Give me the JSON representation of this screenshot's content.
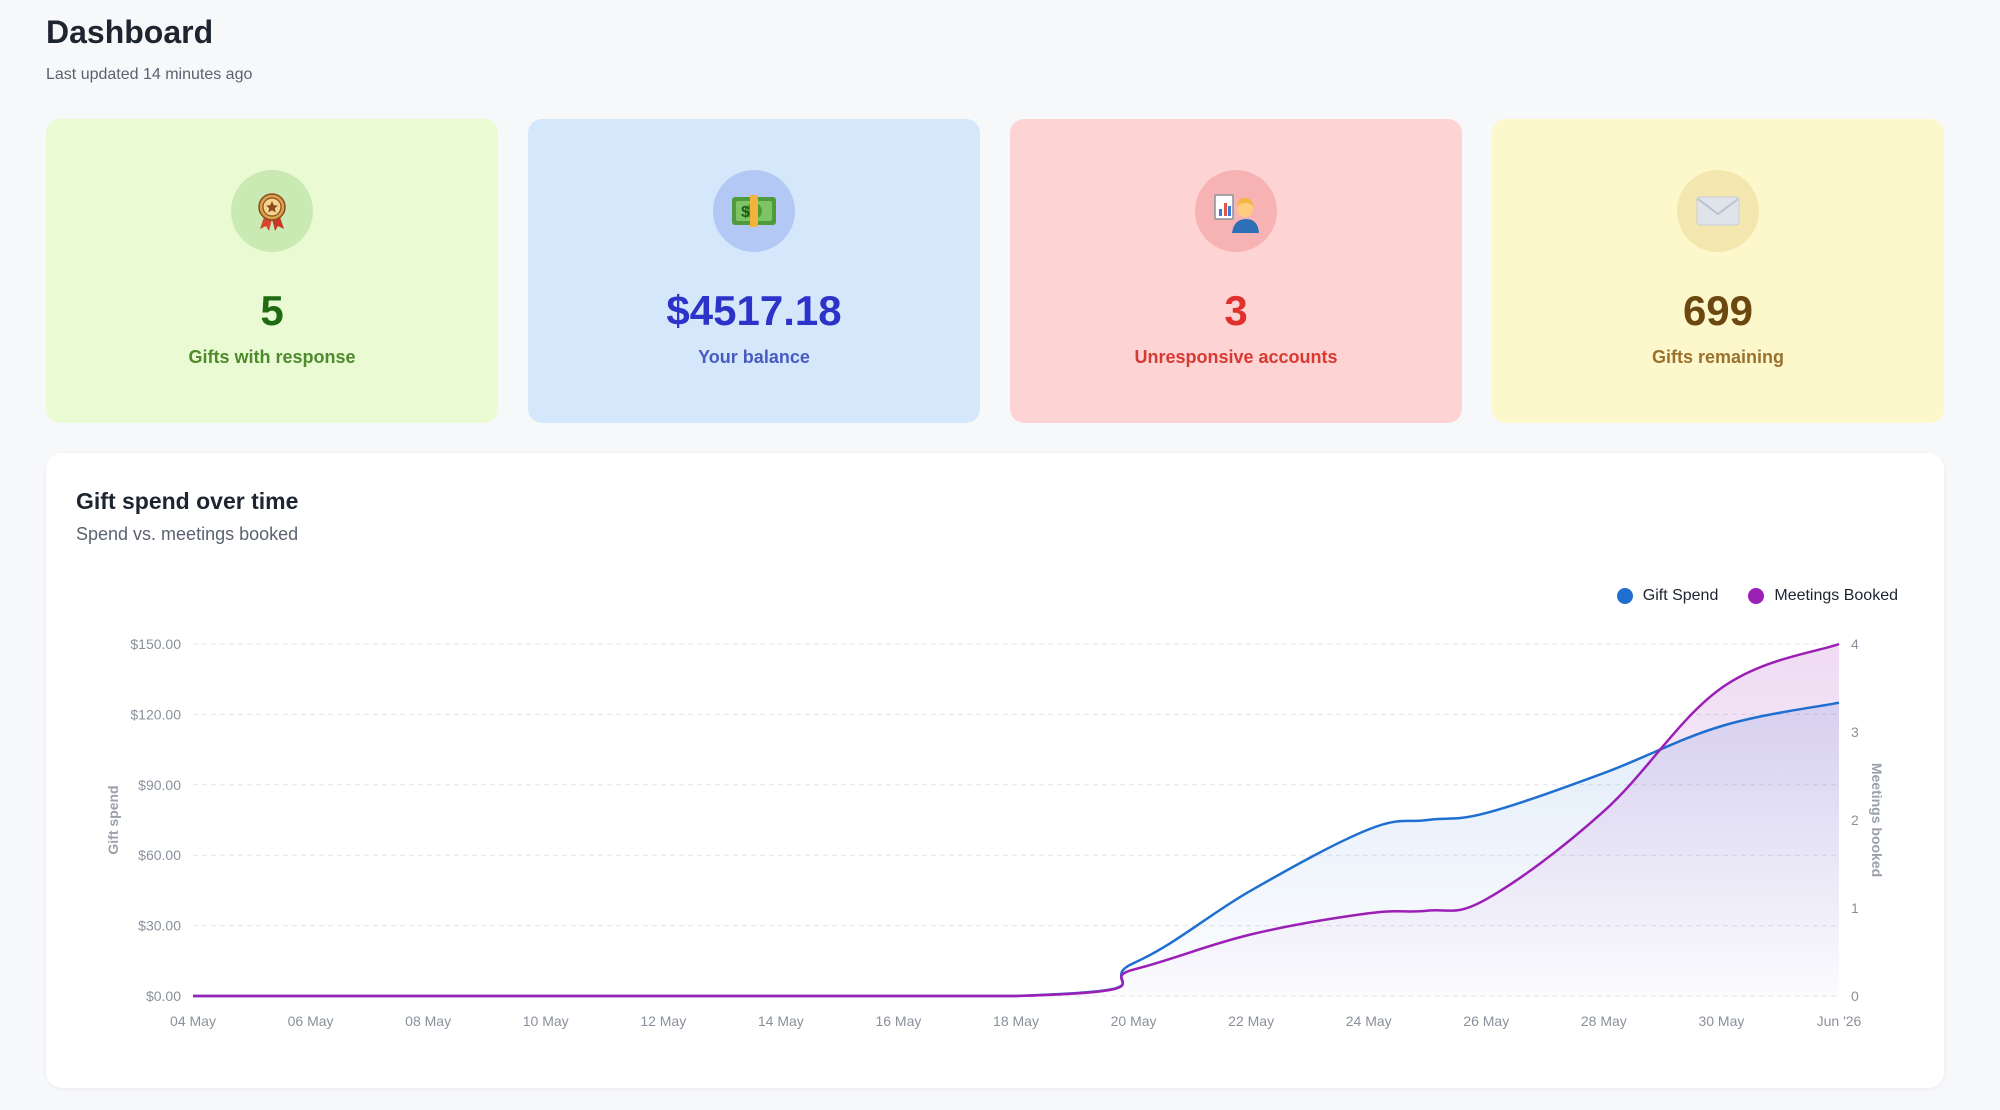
{
  "header": {
    "title": "Dashboard",
    "subtitle": "Last updated 14 minutes ago"
  },
  "cards": [
    {
      "value": "5",
      "label": "Gifts with response",
      "icon": "rosette-award-icon",
      "bg": "#eafbd4",
      "circle": "#c9eab3",
      "value_color": "#1f6b12",
      "label_color": "#4f8a2e"
    },
    {
      "value": "$4517.18",
      "label": "Your balance",
      "icon": "money-bill-icon",
      "bg": "#d5e7fb",
      "circle": "#b3c8f5",
      "value_color": "#2d32c9",
      "label_color": "#4a5bc0"
    },
    {
      "value": "3",
      "label": "Unresponsive accounts",
      "icon": "person-presenting-icon",
      "bg": "#fdd3d3",
      "circle": "#f7b3b3",
      "value_color": "#e0312f",
      "label_color": "#d63a33"
    },
    {
      "value": "699",
      "label": "Gifts remaining",
      "icon": "envelope-icon",
      "bg": "#fdf7cc",
      "circle": "#f3e6ae",
      "value_color": "#6b4810",
      "label_color": "#9a7230"
    }
  ],
  "chart": {
    "title": "Gift spend over time",
    "subtitle": "Spend vs. meetings booked",
    "legend": [
      {
        "name": "Gift Spend",
        "color": "#1f6fd1"
      },
      {
        "name": "Meetings Booked",
        "color": "#9b1fb5"
      }
    ]
  },
  "chart_data": {
    "type": "area",
    "x": [
      "04 May",
      "06 May",
      "08 May",
      "10 May",
      "12 May",
      "14 May",
      "16 May",
      "18 May",
      "20 May",
      "22 May",
      "24 May",
      "26 May",
      "28 May",
      "30 May",
      "Jun '26"
    ],
    "y_left": {
      "label": "Gift spend",
      "ticks": [
        "$0.00",
        "$30.00",
        "$60.00",
        "$90.00",
        "$120.00",
        "$150.00"
      ],
      "ylim": [
        0,
        150
      ]
    },
    "y_right": {
      "label": "Meetings booked",
      "ticks": [
        "0",
        "1",
        "2",
        "3",
        "4"
      ],
      "ylim": [
        0,
        4
      ]
    },
    "grid": true,
    "legend_position": "top-right",
    "series": [
      {
        "name": "Gift Spend",
        "axis": "left",
        "color": "#1f6fd1",
        "points": [
          [
            "04 May",
            0
          ],
          [
            "18 May",
            0
          ],
          [
            "20 May",
            14
          ],
          [
            "22 May",
            45
          ],
          [
            "24 May",
            71
          ],
          [
            "25 May",
            75
          ],
          [
            "26 May",
            78
          ],
          [
            "28 May",
            95
          ],
          [
            "30 May",
            115
          ],
          [
            "Jun '26",
            125
          ]
        ]
      },
      {
        "name": "Meetings Booked",
        "axis": "right",
        "color": "#9b1fb5",
        "points": [
          [
            "04 May",
            0
          ],
          [
            "18 May",
            0
          ],
          [
            "20 May",
            0.3
          ],
          [
            "22 May",
            0.7
          ],
          [
            "24 May",
            0.94
          ],
          [
            "25 May",
            0.97
          ],
          [
            "26 May",
            1.1
          ],
          [
            "28 May",
            2.1
          ],
          [
            "30 May",
            3.5
          ],
          [
            "Jun '26",
            4.0
          ]
        ]
      }
    ]
  }
}
